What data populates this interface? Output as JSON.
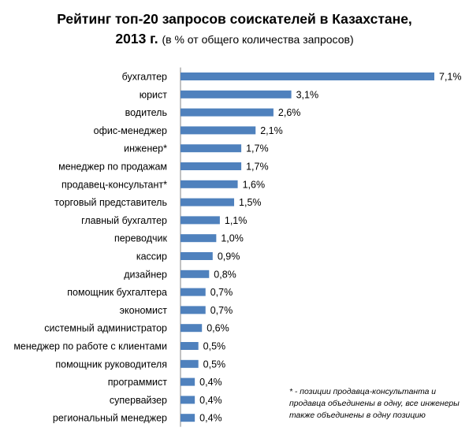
{
  "title": {
    "line1": "Рейтинг топ-20 запросов соискателей в Казахстане,",
    "year": "2013 г.",
    "subtitle": "(в % от общего количества запросов)"
  },
  "footnote": "* - позиции продавца-консультанта и продавца объединены в одну, все инженеры также объединены в одну позицию",
  "colors": {
    "bar": "#4f81bd"
  },
  "chart_data": {
    "type": "bar",
    "orientation": "horizontal",
    "unit": "%",
    "categories": [
      "бухгалтер",
      "юрист",
      "водитель",
      "офис-менеджер",
      "инженер*",
      "менеджер по продажам",
      "продавец-консультант*",
      "торговый представитель",
      "главный бухгалтер",
      "переводчик",
      "кассир",
      "дизайнер",
      "помощник бухгалтера",
      "экономист",
      "системный администратор",
      "менеджер по работе с клиентами",
      "помощник руководителя",
      "программист",
      "супервайзер",
      "региональный менеджер"
    ],
    "values": [
      7.1,
      3.1,
      2.6,
      2.1,
      1.7,
      1.7,
      1.6,
      1.5,
      1.1,
      1.0,
      0.9,
      0.8,
      0.7,
      0.7,
      0.6,
      0.5,
      0.5,
      0.4,
      0.4,
      0.4
    ],
    "value_labels": [
      "7,1%",
      "3,1%",
      "2,6%",
      "2,1%",
      "1,7%",
      "1,7%",
      "1,6%",
      "1,5%",
      "1,1%",
      "1,0%",
      "0,9%",
      "0,8%",
      "0,7%",
      "0,7%",
      "0,6%",
      "0,5%",
      "0,5%",
      "0,4%",
      "0,4%",
      "0,4%"
    ],
    "xlim": [
      0,
      7.1
    ],
    "grid": false,
    "legend": "none"
  }
}
